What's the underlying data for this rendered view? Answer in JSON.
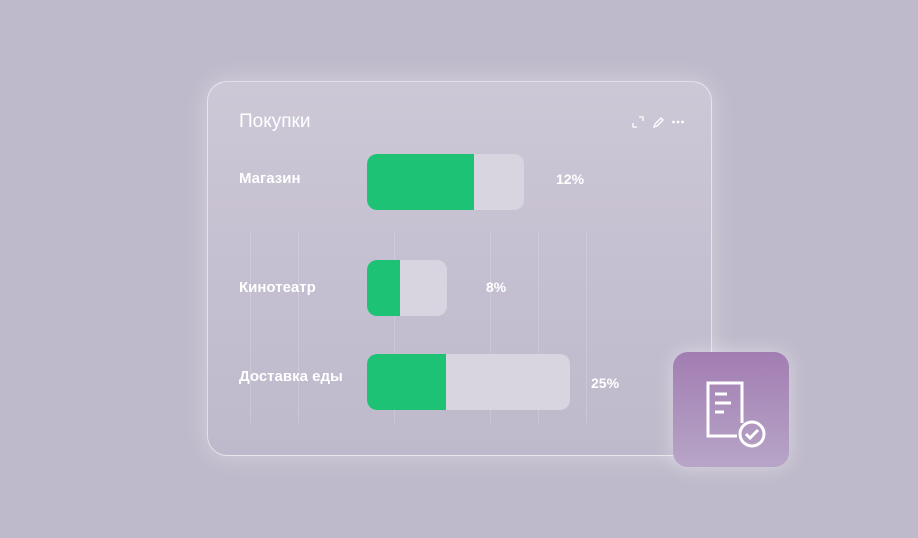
{
  "chart_data": {
    "type": "bar",
    "orientation": "horizontal",
    "title": "Покупки",
    "categories": [
      "Магазин",
      "Кинотеатр",
      "Доставка еды"
    ],
    "values": [
      12,
      8,
      25
    ],
    "value_labels": [
      "12%",
      "8%",
      "25%"
    ],
    "fill_fractions": [
      0.68,
      0.41,
      0.39
    ],
    "colors": {
      "fill": "#1ec274",
      "track": "#d8d5e0"
    },
    "grid": true
  },
  "card_icons": [
    "expand-icon",
    "pencil-icon",
    "more-icon"
  ],
  "badge_icon": "document-check-icon",
  "colors": {
    "background": "#bfbacb",
    "badge": "#a27db2"
  }
}
